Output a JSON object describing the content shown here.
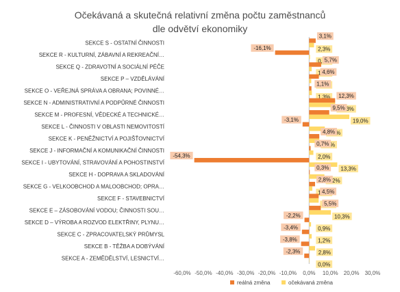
{
  "chart_data": {
    "type": "bar",
    "orientation": "horizontal",
    "title_line1": "Očekávaná a skutečná relativní změna počtu zaměstnanců",
    "title_line2": "dle odvětví ekonomiky",
    "categories": [
      "SEKCE S - OSTATNÍ ČINNOSTI",
      "SEKCE R - KULTURNÍ, ZÁBAVNÍ A REKREAČNÍ…",
      "SEKCE Q - ZDRAVOTNÍ A SOCIÁLNÍ PÉČE",
      "SEKCE P – VZDĚLÁVÁNÍ",
      "SEKCE O - VEŘEJNÁ SPRÁVA A OBRANA; POVINNÉ…",
      "SEKCE N - ADMINISTRATIVNÍ A PODPŮRNÉ ČINNOSTI",
      "SEKCE M - PROFESNÍ, VĚDECKÉ A TECHNICKÉ…",
      "SEKCE L - ČINNOSTI V OBLASTI NEMOVITOSTÍ",
      "SEKCE K - PENĚŽNICTVÍ A POJIŠŤOVNICTVÍ",
      "SEKCE J - INFORMAČNÍ A KOMUNIKAČNÍ ČINNOSTI",
      "SEKCE I - UBYTOVÁNÍ, STRAVOVÁNÍ A POHOSTINSTVÍ",
      "SEKCE H - DOPRAVA A SKLADOVÁNÍ",
      "SEKCE G - VELKOOBCHOD A MALOOBCHOD; OPRA…",
      "SEKCE F - STAVEBNICTVÍ",
      "SEKCE E – ZÁSOBOVÁNÍ VODOU; ČINNOSTI SOU…",
      "SEKCE D – VÝROBA A ROZVOD ELEKTŘINY, PLYNU…",
      "SEKCE C - ZPRACOVATELSKÝ PRŮMYSL",
      "SEKCE B - TĚŽBA A DOBÝVÁNÍ",
      "SEKCE A - ZEMĚDĚLSTVÍ, LESNICTVÍ…"
    ],
    "series": [
      {
        "name": "reálná změna",
        "color": "#ED7D31",
        "values": [
          3.1,
          -16.1,
          5.7,
          4.6,
          1.1,
          12.3,
          9.5,
          -3.1,
          4.8,
          0.7,
          -54.3,
          0.3,
          2.8,
          4.5,
          5.5,
          -2.2,
          -3.4,
          -3.8,
          -2.3
        ]
      },
      {
        "name": "očekávaná změna",
        "color": "#FFD966",
        "values": [
          2.3,
          0.4,
          1.2,
          1.0,
          1.3,
          12.3,
          19.0,
          7.4,
          4.8,
          2.0,
          13.3,
          7.2,
          1.5,
          4.5,
          10.3,
          0.9,
          1.2,
          2.8,
          0.0
        ]
      }
    ],
    "xlim": [
      -60,
      30
    ],
    "xticks": [
      "-60,0%",
      "-50,0%",
      "-40,0%",
      "-30,0%",
      "-20,0%",
      "-10,0%",
      "0,0%",
      "10,0%",
      "20,0%",
      "30,0%"
    ],
    "label_colors": {
      "reálná změna": "#F8CBAD",
      "očekávaná změna": "#FFE699"
    },
    "legend_position": "bottom",
    "grid": false
  }
}
